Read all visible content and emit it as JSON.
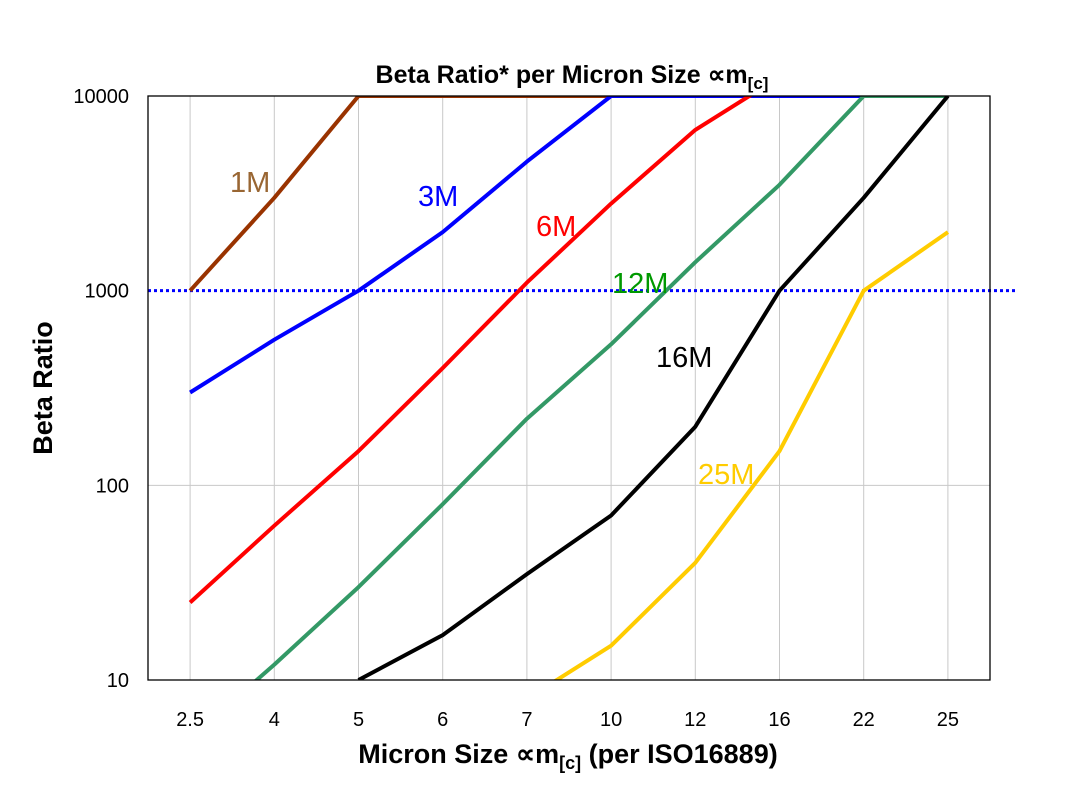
{
  "chart_data": {
    "type": "line",
    "title": "Beta Ratio* per Micron Size ∝m",
    "title_sub": "[c]",
    "xlabel": "Micron Size ∝m",
    "xlabel_sub": "[c]",
    "xlabel_suffix": " (per ISO16889)",
    "ylabel": "Beta Ratio",
    "y_scale": "log",
    "ylim": [
      10,
      10000
    ],
    "y_ticks": [
      "10",
      "100",
      "1000",
      "10000"
    ],
    "grid": true,
    "reference_line": {
      "y": 1000,
      "style": "dotted",
      "color": "#0000FF"
    },
    "categories": [
      "2.5",
      "4",
      "5",
      "6",
      "7",
      "10",
      "12",
      "16",
      "22",
      "25"
    ],
    "series": [
      {
        "name": "1M",
        "color": "#993300",
        "label_color": "#996633",
        "values": [
          1000,
          3000,
          10000,
          10000,
          10000,
          10000,
          null,
          null,
          null,
          null
        ]
      },
      {
        "name": "3M",
        "color": "#0000FF",
        "label_color": "#0000FF",
        "values": [
          300,
          560,
          1000,
          2000,
          4600,
          10000,
          10000,
          10000,
          10000,
          null
        ]
      },
      {
        "name": "6M",
        "color": "#FF0000",
        "label_color": "#FF0000",
        "values": [
          25,
          62,
          150,
          400,
          1100,
          2800,
          6700,
          12500,
          null,
          null
        ]
      },
      {
        "name": "12M",
        "color": "#339966",
        "label_color": "#009900",
        "values": [
          5,
          12,
          30,
          80,
          220,
          530,
          1400,
          3500,
          10000,
          10000
        ]
      },
      {
        "name": "16M",
        "color": "#000000",
        "label_color": "#000000",
        "values": [
          null,
          null,
          10,
          17,
          35,
          70,
          200,
          1000,
          3000,
          10000
        ]
      },
      {
        "name": "25M",
        "color": "#FFCC00",
        "label_color": "#FFCC00",
        "values": [
          null,
          null,
          null,
          null,
          8,
          15,
          40,
          150,
          1000,
          2000
        ]
      }
    ]
  }
}
